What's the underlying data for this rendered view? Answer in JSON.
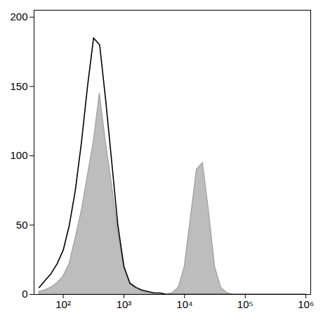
{
  "chart_data": {
    "type": "line",
    "log": "x",
    "xlim": [
      33,
      1200000
    ],
    "ylim": [
      0,
      205
    ],
    "xticks": [
      {
        "value": 100,
        "label": "10²"
      },
      {
        "value": 1000,
        "label": "10³"
      },
      {
        "value": 10000,
        "label": "10⁴"
      },
      {
        "value": 100000,
        "label": "10⁵"
      },
      {
        "value": 1000000,
        "label": "10⁶"
      }
    ],
    "yticks": [
      0,
      50,
      100,
      150,
      200
    ],
    "x": [
      40,
      50,
      63,
      79,
      100,
      126,
      158,
      200,
      251,
      316,
      398,
      501,
      631,
      794,
      1000,
      1259,
      1585,
      1995,
      2512,
      3162,
      3981,
      5012,
      6310,
      7943,
      10000,
      12589,
      15849,
      19953,
      25119,
      31623,
      39811,
      50119,
      63096,
      100000,
      1000000
    ],
    "series": [
      {
        "type": "area",
        "color": "#bdbdbd",
        "values": [
          2,
          3,
          5,
          8,
          13,
          22,
          40,
          60,
          85,
          110,
          145,
          110,
          80,
          45,
          20,
          8,
          4,
          2,
          1,
          0,
          0,
          0,
          1,
          5,
          20,
          55,
          90,
          95,
          60,
          20,
          5,
          1,
          0,
          0,
          0
        ]
      },
      {
        "type": "line",
        "color": "#000000",
        "values": [
          5,
          10,
          15,
          22,
          32,
          50,
          75,
          110,
          150,
          185,
          180,
          140,
          95,
          50,
          20,
          8,
          5,
          3,
          2,
          1,
          1,
          0,
          0,
          0,
          0,
          0,
          0,
          0,
          0,
          0,
          0,
          0,
          0,
          0,
          0
        ]
      }
    ]
  }
}
